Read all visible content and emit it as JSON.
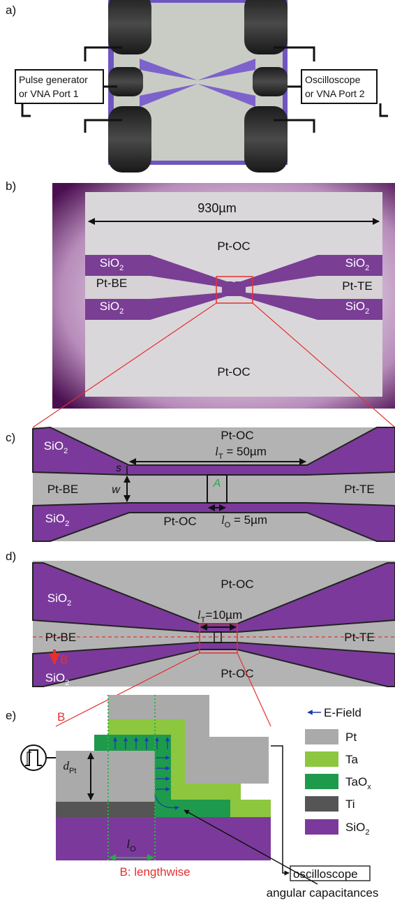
{
  "a": {
    "label": "a)",
    "left_box": [
      "Pulse generator",
      "or VNA Port 1"
    ],
    "right_box": [
      "Oscilloscope",
      "or VNA Port 2"
    ]
  },
  "b": {
    "label": "b)",
    "scale": "930µm",
    "top": "Pt-OC",
    "bottom": "Pt-OC",
    "left": "Pt-BE",
    "right": "Pt-TE",
    "oxide": [
      {
        "main": "SiO",
        "sub": "2"
      },
      {
        "main": "SiO",
        "sub": "2"
      },
      {
        "main": "SiO",
        "sub": "2"
      },
      {
        "main": "SiO",
        "sub": "2"
      }
    ]
  },
  "c": {
    "label": "c)",
    "top": "Pt-OC",
    "length": {
      "var": "l",
      "sub": "T",
      "rest": " = 50µm"
    },
    "oxide": [
      {
        "main": "SiO",
        "sub": "2"
      },
      {
        "main": "SiO",
        "sub": "2"
      }
    ],
    "spacing": "s",
    "width": "w",
    "area": "A",
    "left": "Pt-BE",
    "right": "Pt-TE",
    "bottom": "Pt-OC",
    "overlap": {
      "var": "l",
      "sub": "O",
      "rest": " = 5µm"
    }
  },
  "d": {
    "label": "d)",
    "top": "Pt-OC",
    "oxide": [
      {
        "main": "SiO",
        "sub": "2"
      },
      {
        "main": "SiO",
        "sub": "2"
      }
    ],
    "length": {
      "var": "l",
      "sub": "T",
      "rest": "=10µm"
    },
    "left": "Pt-BE",
    "right": "Pt-TE",
    "cut": "B",
    "bottom": "Pt-OC"
  },
  "e": {
    "label": "e)",
    "cut": "B",
    "field": "E-Field",
    "layers": [
      {
        "name": "Pt",
        "color": "#aaaaaa"
      },
      {
        "name": "Ta",
        "color": "#8dc63f"
      },
      {
        "name": {
          "main": "TaO",
          "sub": "x"
        },
        "color": "#1e9a4c"
      },
      {
        "name": "Ti",
        "color": "#555555"
      },
      {
        "name": {
          "main": "SiO",
          "sub": "2"
        },
        "color": "#7b3a9b"
      }
    ],
    "thickness": {
      "var": "d",
      "sub": "Pt"
    },
    "overlap": {
      "var": "l",
      "sub": "O"
    },
    "caption": "B: lengthwise",
    "output": "oscilloscope",
    "pointer": "angular capacitances"
  }
}
